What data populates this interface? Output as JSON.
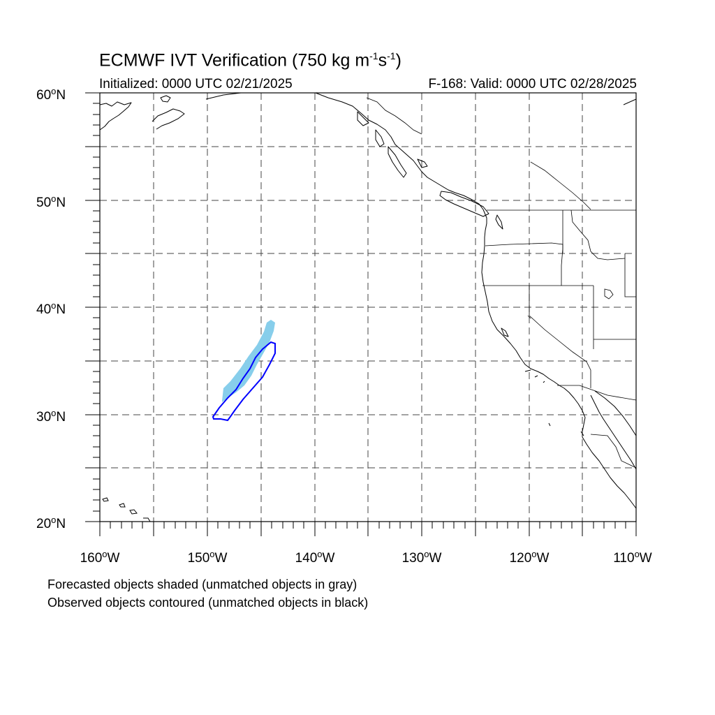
{
  "title": {
    "main": "ECMWF IVT Verification (750 kg m",
    "exp1": "-1",
    "mid": "s",
    "exp2": "-1",
    "end": ")"
  },
  "initialized": "Initialized: 0000 UTC 02/21/2025",
  "valid": "F-168: Valid: 0000 UTC 02/28/2025",
  "map": {
    "lon_range": [
      -160,
      -110
    ],
    "lat_range": [
      20,
      60
    ],
    "lat_labels": [
      {
        "value": "60",
        "hemi": "N"
      },
      {
        "value": "50",
        "hemi": "N"
      },
      {
        "value": "40",
        "hemi": "N"
      },
      {
        "value": "30",
        "hemi": "N"
      },
      {
        "value": "20",
        "hemi": "N"
      }
    ],
    "lon_labels": [
      {
        "value": "160",
        "hemi": "W"
      },
      {
        "value": "150",
        "hemi": "W"
      },
      {
        "value": "140",
        "hemi": "W"
      },
      {
        "value": "130",
        "hemi": "W"
      },
      {
        "value": "120",
        "hemi": "W"
      },
      {
        "value": "110",
        "hemi": "W"
      }
    ],
    "gridline_style": "dashed",
    "forecast_object_color": "#87ceeb",
    "observed_object_color": "#0000ff",
    "coastline_color": "#000000"
  },
  "captions": [
    "Forecasted objects shaded (unmatched objects in gray)",
    "Observed objects contoured (unmatched objects in black)"
  ]
}
